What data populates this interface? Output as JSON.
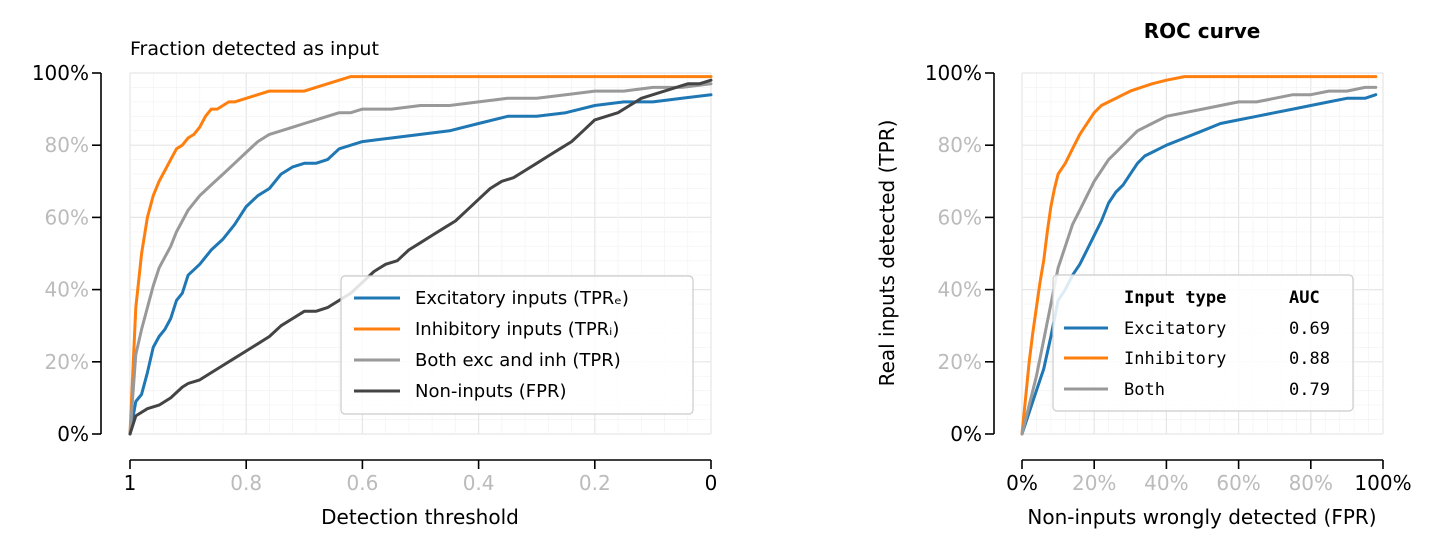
{
  "colors": {
    "excitatory": "#1f77b4",
    "inhibitory": "#ff7f0e",
    "both": "#999999",
    "noninputs": "#444444",
    "tick_major": "#000000",
    "tick_faint": "#bbbbbb",
    "grid": "#ebebeb"
  },
  "chart_data": [
    {
      "type": "line",
      "title": "Fraction detected as input",
      "xlabel": "Detection threshold",
      "ylabel": "",
      "xlim": [
        1,
        0
      ],
      "ylim": [
        0,
        100
      ],
      "x_ticks": [
        "1",
        "0.8",
        "0.6",
        "0.4",
        "0.2",
        "0"
      ],
      "y_ticks": [
        "0%",
        "20%",
        "40%",
        "60%",
        "80%",
        "100%"
      ],
      "grid": true,
      "legend_position": "lower-right",
      "series": [
        {
          "key": "excitatory",
          "name": "Excitatory inputs (TPRₑ)",
          "x": [
            1.0,
            0.99,
            0.98,
            0.97,
            0.96,
            0.95,
            0.94,
            0.93,
            0.92,
            0.91,
            0.9,
            0.88,
            0.86,
            0.84,
            0.82,
            0.8,
            0.78,
            0.76,
            0.74,
            0.72,
            0.7,
            0.68,
            0.66,
            0.64,
            0.62,
            0.6,
            0.55,
            0.5,
            0.45,
            0.4,
            0.35,
            0.3,
            0.25,
            0.2,
            0.15,
            0.1,
            0.05,
            0.0
          ],
          "y": [
            0,
            9,
            11,
            17,
            24,
            27,
            29,
            32,
            37,
            39,
            44,
            47,
            51,
            54,
            58,
            63,
            66,
            68,
            72,
            74,
            75,
            75,
            76,
            79,
            80,
            81,
            82,
            83,
            84,
            86,
            88,
            88,
            89,
            91,
            92,
            92,
            93,
            94
          ]
        },
        {
          "key": "inhibitory",
          "name": "Inhibitory inputs (TPRᵢ)",
          "x": [
            1.0,
            0.99,
            0.98,
            0.97,
            0.96,
            0.95,
            0.94,
            0.93,
            0.92,
            0.91,
            0.9,
            0.89,
            0.88,
            0.87,
            0.86,
            0.85,
            0.84,
            0.83,
            0.82,
            0.8,
            0.78,
            0.76,
            0.74,
            0.72,
            0.7,
            0.68,
            0.66,
            0.64,
            0.62,
            0.5,
            0.4,
            0.3,
            0.2,
            0.1,
            0.0
          ],
          "y": [
            0,
            35,
            50,
            60,
            66,
            70,
            73,
            76,
            79,
            80,
            82,
            83,
            85,
            88,
            90,
            90,
            91,
            92,
            92,
            93,
            94,
            95,
            95,
            95,
            95,
            96,
            97,
            98,
            99,
            99,
            99,
            99,
            99,
            99,
            99
          ]
        },
        {
          "key": "both",
          "name": "Both exc and inh (TPR)",
          "x": [
            1.0,
            0.99,
            0.98,
            0.97,
            0.96,
            0.95,
            0.94,
            0.93,
            0.92,
            0.91,
            0.9,
            0.88,
            0.86,
            0.84,
            0.82,
            0.8,
            0.78,
            0.76,
            0.74,
            0.72,
            0.7,
            0.68,
            0.66,
            0.64,
            0.62,
            0.6,
            0.55,
            0.5,
            0.45,
            0.4,
            0.35,
            0.3,
            0.25,
            0.2,
            0.15,
            0.1,
            0.05,
            0.0
          ],
          "y": [
            0,
            22,
            29,
            35,
            41,
            46,
            49,
            52,
            56,
            59,
            62,
            66,
            69,
            72,
            75,
            78,
            81,
            83,
            84,
            85,
            86,
            87,
            88,
            89,
            89,
            90,
            90,
            91,
            91,
            92,
            93,
            93,
            94,
            95,
            95,
            96,
            96,
            97
          ]
        },
        {
          "key": "noninputs",
          "name": "Non-inputs (FPR)",
          "x": [
            1.0,
            0.99,
            0.97,
            0.95,
            0.93,
            0.91,
            0.9,
            0.88,
            0.86,
            0.84,
            0.82,
            0.8,
            0.78,
            0.76,
            0.74,
            0.72,
            0.7,
            0.68,
            0.66,
            0.64,
            0.62,
            0.6,
            0.58,
            0.56,
            0.54,
            0.52,
            0.5,
            0.48,
            0.46,
            0.44,
            0.42,
            0.4,
            0.38,
            0.36,
            0.34,
            0.32,
            0.3,
            0.28,
            0.26,
            0.24,
            0.22,
            0.2,
            0.18,
            0.16,
            0.14,
            0.12,
            0.1,
            0.08,
            0.06,
            0.04,
            0.02,
            0.0
          ],
          "y": [
            0,
            5,
            7,
            8,
            10,
            13,
            14,
            15,
            17,
            19,
            21,
            23,
            25,
            27,
            30,
            32,
            34,
            34,
            35,
            37,
            39,
            42,
            45,
            47,
            48,
            51,
            53,
            55,
            57,
            59,
            62,
            65,
            68,
            70,
            71,
            73,
            75,
            77,
            79,
            81,
            84,
            87,
            88,
            89,
            91,
            93,
            94,
            95,
            96,
            97,
            97,
            98
          ]
        }
      ]
    },
    {
      "type": "line",
      "title": "ROC curve",
      "xlabel": "Non-inputs wrongly detected (FPR)",
      "ylabel": "Real inputs detected (TPR)",
      "xlim": [
        0,
        100
      ],
      "ylim": [
        0,
        100
      ],
      "x_ticks": [
        "0%",
        "20%",
        "40%",
        "60%",
        "80%",
        "100%"
      ],
      "y_ticks": [
        "0%",
        "20%",
        "40%",
        "60%",
        "80%",
        "100%"
      ],
      "grid": true,
      "legend_position": "lower-right",
      "legend_header": [
        "Input type",
        "AUC"
      ],
      "series": [
        {
          "key": "excitatory",
          "name": "Excitatory",
          "auc": "0.69",
          "x": [
            0,
            2,
            4,
            6,
            8,
            10,
            12,
            14,
            16,
            18,
            20,
            22,
            24,
            26,
            28,
            30,
            32,
            34,
            36,
            38,
            40,
            45,
            50,
            55,
            60,
            65,
            70,
            75,
            80,
            85,
            90,
            95,
            98
          ],
          "y": [
            0,
            6,
            12,
            18,
            27,
            37,
            40,
            44,
            47,
            51,
            55,
            59,
            64,
            67,
            69,
            72,
            75,
            77,
            78,
            79,
            80,
            82,
            84,
            86,
            87,
            88,
            89,
            90,
            91,
            92,
            93,
            93,
            94
          ]
        },
        {
          "key": "inhibitory",
          "name": "Inhibitory",
          "auc": "0.88",
          "x": [
            0,
            1,
            2,
            3,
            4,
            5,
            6,
            7,
            8,
            9,
            10,
            12,
            14,
            16,
            18,
            20,
            22,
            24,
            26,
            28,
            30,
            33,
            36,
            40,
            45,
            50,
            60,
            70,
            80,
            90,
            98
          ],
          "y": [
            0,
            10,
            20,
            28,
            35,
            42,
            48,
            56,
            63,
            68,
            72,
            75,
            79,
            83,
            86,
            89,
            91,
            92,
            93,
            94,
            95,
            96,
            97,
            98,
            99,
            99,
            99,
            99,
            99,
            99,
            99
          ]
        },
        {
          "key": "both",
          "name": "Both",
          "auc": "0.79",
          "x": [
            0,
            2,
            4,
            6,
            8,
            10,
            12,
            14,
            16,
            18,
            20,
            22,
            24,
            26,
            28,
            30,
            32,
            34,
            36,
            38,
            40,
            45,
            50,
            55,
            60,
            65,
            70,
            75,
            80,
            85,
            90,
            95,
            98
          ],
          "y": [
            0,
            8,
            16,
            26,
            36,
            46,
            52,
            58,
            62,
            66,
            70,
            73,
            76,
            78,
            80,
            82,
            84,
            85,
            86,
            87,
            88,
            89,
            90,
            91,
            92,
            92,
            93,
            94,
            94,
            95,
            95,
            96,
            96
          ]
        }
      ]
    }
  ]
}
